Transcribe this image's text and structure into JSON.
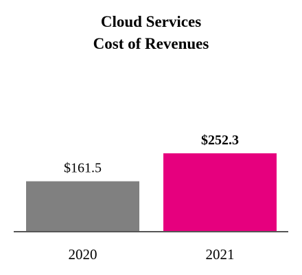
{
  "chart_data": {
    "type": "bar",
    "title_lines": [
      "Cloud Services",
      "Cost of Revenues"
    ],
    "categories": [
      "2020",
      "2021"
    ],
    "values": [
      161.5,
      252.3
    ],
    "value_labels": [
      "$161.5",
      "$252.3"
    ],
    "value_label_bold": [
      false,
      true
    ],
    "colors": [
      "#808080",
      "#e6007e"
    ],
    "xlabel": "",
    "ylabel": "",
    "ylim": [
      0,
      252.3
    ],
    "grid": false
  }
}
